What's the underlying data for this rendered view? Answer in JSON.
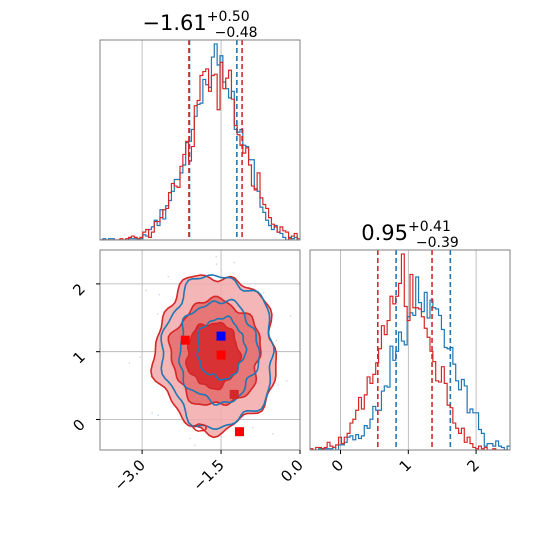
{
  "chart_data": {
    "type": "corner",
    "colors": {
      "blue": "#1f77b4",
      "red": "#d62728",
      "grid": "#b0b0b0"
    },
    "panels": [
      {
        "id": "hist-param-1",
        "type": "step-histogram",
        "title": {
          "median": "−1.61",
          "plus": "+0.50",
          "minus": "−0.48"
        },
        "xlim": [
          -3.8,
          0.0
        ],
        "grid": true,
        "series": [
          {
            "color": "#1f77b4",
            "center": -1.6,
            "sigma": 0.5,
            "quantiles": [
              -2.1,
              -1.2
            ]
          },
          {
            "color": "#d62728",
            "center": -1.6,
            "sigma": 0.52,
            "quantiles": [
              -2.11,
              -1.1
            ]
          }
        ]
      },
      {
        "id": "contour-param-1-vs-2",
        "type": "2d-contour",
        "xlim": [
          -3.8,
          0.0
        ],
        "ylim": [
          -0.45,
          2.5
        ],
        "x_ticks": [
          "−3.0",
          "−1.5",
          "0.0"
        ],
        "x_tick_values": [
          -3.0,
          -1.5,
          0.0
        ],
        "y_ticks": [
          "0",
          "1",
          "2"
        ],
        "y_tick_values": [
          0,
          1,
          2
        ],
        "grid": true,
        "red_levels": [
          {
            "cx": -1.6,
            "cy": 0.98,
            "rx": 1.15,
            "ry": 1.15
          },
          {
            "cx": -1.6,
            "cy": 0.98,
            "rx": 0.85,
            "ry": 0.78
          },
          {
            "cx": -1.65,
            "cy": 0.95,
            "rx": 0.5,
            "ry": 0.48
          }
        ],
        "blue_levels": [
          {
            "cx": -1.55,
            "cy": 1.0,
            "rx": 1.05,
            "ry": 1.12
          },
          {
            "cx": -1.55,
            "cy": 1.0,
            "rx": 0.75,
            "ry": 0.75
          },
          {
            "cx": -1.5,
            "cy": 1.05,
            "rx": 0.45,
            "ry": 0.45
          }
        ],
        "markers": [
          {
            "x": -2.18,
            "y": 1.17,
            "color": "#ff0000"
          },
          {
            "x": -1.5,
            "y": 1.23,
            "color": "#0000ff"
          },
          {
            "x": -1.5,
            "y": 0.95,
            "color": "#ff0000"
          },
          {
            "x": -1.25,
            "y": 0.37,
            "color": "#d62728"
          },
          {
            "x": -1.15,
            "y": -0.18,
            "color": "#ff0000"
          }
        ]
      },
      {
        "id": "hist-param-2",
        "type": "step-histogram",
        "title": {
          "median": "0.95",
          "plus": "+0.41",
          "minus": "−0.39"
        },
        "xlim": [
          -0.45,
          2.5
        ],
        "x_ticks": [
          "0",
          "1",
          "2"
        ],
        "x_tick_values": [
          0,
          1,
          2
        ],
        "grid": true,
        "series": [
          {
            "color": "#1f77b4",
            "center": 1.22,
            "sigma": 0.42,
            "quantiles": [
              0.82,
              1.62
            ]
          },
          {
            "color": "#d62728",
            "center": 0.95,
            "sigma": 0.4,
            "quantiles": [
              0.55,
              1.35
            ]
          }
        ]
      }
    ]
  }
}
